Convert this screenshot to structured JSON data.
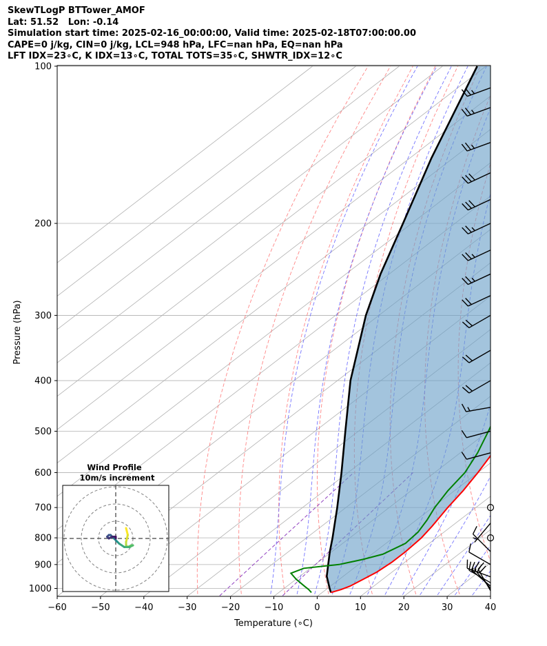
{
  "title_lines": [
    "SkewTLogP BTTower_AMOF",
    "Lat: 51.52   Lon: -0.14",
    "Simulation start time: 2025-02-16_00:00:00, Valid time: 2025-02-18T07:00:00.00",
    "CAPE=0 j/kg, CIN=0 j/kg, LCL=948 hPa, LFC=nan hPa, EQ=nan hPa",
    "LFT IDX=23∘C, K IDX=13∘C, TOTAL TOTS=35∘C, SHWTR_IDX=12∘C"
  ],
  "chart_data": {
    "type": "line",
    "subtype": "skew-t log-p diagram",
    "xlabel": "Temperature (∘C)",
    "ylabel": "Pressure (hPa)",
    "xlim": [
      -60,
      40
    ],
    "ylim": [
      1050,
      100
    ],
    "y_scale": "log",
    "x_ticks": [
      "−60",
      "−50",
      "−40",
      "−30",
      "−20",
      "−10",
      "0",
      "10",
      "20",
      "30",
      "40"
    ],
    "x_tick_values": [
      -60,
      -50,
      -40,
      -30,
      -20,
      -10,
      0,
      10,
      20,
      30,
      40
    ],
    "y_ticks": [
      "100",
      "200",
      "300",
      "400",
      "500",
      "600",
      "700",
      "800",
      "900",
      "1000"
    ],
    "y_tick_values": [
      100,
      200,
      300,
      400,
      500,
      600,
      700,
      800,
      900,
      1000
    ],
    "grid": true,
    "colors": {
      "temperature": "#ff0000",
      "dewpoint": "#008000",
      "parcel": "#000000",
      "cin_fill": "#6aa0c8",
      "dry_adiabats": "#ff6666",
      "moist_adiabats": "#5a5aff",
      "mixing_ratio": "#9040c0",
      "isotherms": "#b0b0b0"
    },
    "series": [
      {
        "key": "temperature",
        "pressure": [
          1018,
          1005,
          990,
          960,
          930,
          890,
          850,
          800,
          760,
          700,
          650,
          600,
          550,
          500,
          450,
          400,
          350,
          300,
          270,
          240,
          210,
          200,
          190,
          180,
          170,
          160,
          150,
          140,
          130,
          120,
          110,
          100
        ],
        "temperature": [
          2.0,
          3.5,
          4.5,
          5.5,
          6.5,
          7.0,
          7.0,
          6.5,
          5.5,
          3.5,
          2.0,
          0.0,
          -2.5,
          -5.5,
          -9.5,
          -14.5,
          -20.5,
          -28.5,
          -33.5,
          -39.0,
          -44.0,
          -48.0,
          -49.5,
          -47.5,
          -44.5,
          -41.0,
          -40.0,
          -40.0,
          -42.0,
          -46.5,
          -51.0,
          -55.5
        ]
      },
      {
        "key": "dewpoint",
        "pressure": [
          1018,
          1005,
          990,
          960,
          935,
          915,
          900,
          880,
          860,
          820,
          780,
          740,
          700,
          650,
          600,
          550,
          500,
          450,
          400,
          350,
          320,
          300,
          270,
          240,
          210,
          200,
          190,
          180,
          170,
          160,
          150,
          140,
          130,
          120,
          110,
          100
        ],
        "temperature": [
          -2.5,
          -4.0,
          -6.0,
          -10.0,
          -13.0,
          -11.5,
          -4.5,
          -0.5,
          2.5,
          4.5,
          4.0,
          2.5,
          0.5,
          -1.5,
          -3.0,
          -6.0,
          -10.0,
          -14.5,
          -20.0,
          -25.0,
          -29.0,
          -32.5,
          -36.0,
          -40.0,
          -45.0,
          -50.0,
          -50.5,
          -47.0,
          -43.5,
          -45.0,
          -40.0,
          -35.0,
          -32.0,
          -31.0,
          -33.0,
          -36.0
        ]
      },
      {
        "key": "parcel",
        "pressure": [
          1018,
          1000,
          948,
          900,
          850,
          800,
          700,
          600,
          500,
          400,
          300,
          250,
          200,
          150,
          100
        ],
        "temperature": [
          2.0,
          0.5,
          -3.8,
          -7.0,
          -10.5,
          -14.0,
          -22.0,
          -31.5,
          -43.0,
          -57.0,
          -73.0,
          -82.0,
          -92.0,
          -105.0,
          -122.0
        ]
      }
    ],
    "wind_barbs": [
      {
        "pressure": 1010,
        "speed_kt": 20,
        "direction_deg": 330
      },
      {
        "pressure": 1000,
        "speed_kt": 20,
        "direction_deg": 320
      },
      {
        "pressure": 990,
        "speed_kt": 15,
        "direction_deg": 310
      },
      {
        "pressure": 975,
        "speed_kt": 15,
        "direction_deg": 300
      },
      {
        "pressure": 950,
        "speed_kt": 10,
        "direction_deg": 290
      },
      {
        "pressure": 900,
        "speed_kt": 10,
        "direction_deg": 300
      },
      {
        "pressure": 850,
        "speed_kt": 10,
        "direction_deg": 315
      },
      {
        "pressure": 800,
        "speed_kt": 0,
        "direction_deg": 0
      },
      {
        "pressure": 750,
        "speed_kt": 5,
        "direction_deg": 220
      },
      {
        "pressure": 700,
        "speed_kt": 0,
        "direction_deg": 0
      },
      {
        "pressure": 550,
        "speed_kt": 10,
        "direction_deg": 255
      },
      {
        "pressure": 500,
        "speed_kt": 10,
        "direction_deg": 255
      },
      {
        "pressure": 450,
        "speed_kt": 15,
        "direction_deg": 260
      },
      {
        "pressure": 400,
        "speed_kt": 20,
        "direction_deg": 240
      },
      {
        "pressure": 350,
        "speed_kt": 20,
        "direction_deg": 240
      },
      {
        "pressure": 300,
        "speed_kt": 20,
        "direction_deg": 240
      },
      {
        "pressure": 275,
        "speed_kt": 20,
        "direction_deg": 245
      },
      {
        "pressure": 250,
        "speed_kt": 25,
        "direction_deg": 245
      },
      {
        "pressure": 225,
        "speed_kt": 25,
        "direction_deg": 245
      },
      {
        "pressure": 200,
        "speed_kt": 25,
        "direction_deg": 245
      },
      {
        "pressure": 180,
        "speed_kt": 30,
        "direction_deg": 245
      },
      {
        "pressure": 160,
        "speed_kt": 30,
        "direction_deg": 245
      },
      {
        "pressure": 140,
        "speed_kt": 25,
        "direction_deg": 250
      },
      {
        "pressure": 120,
        "speed_kt": 25,
        "direction_deg": 250
      },
      {
        "pressure": 110,
        "speed_kt": 25,
        "direction_deg": 250
      }
    ],
    "inset": {
      "title_lines": [
        "Wind Profile",
        "10m/s increment"
      ],
      "ring_step": 10,
      "rings": 3,
      "hodograph_uv": [
        [
          6,
          6
        ],
        [
          7,
          2
        ],
        [
          6,
          -2
        ],
        [
          6,
          -4
        ],
        [
          7,
          -5
        ],
        [
          9,
          -4
        ],
        [
          10,
          -4
        ],
        [
          8,
          -5
        ],
        [
          5,
          -5
        ],
        [
          2,
          -3
        ],
        [
          1,
          -2
        ],
        [
          0,
          -1
        ],
        [
          -1,
          0
        ],
        [
          -2,
          1
        ],
        [
          -3,
          2
        ],
        [
          -4,
          2
        ],
        [
          -5,
          1
        ],
        [
          -4,
          0
        ],
        [
          -2,
          1
        ],
        [
          0,
          1
        ],
        [
          0,
          0
        ]
      ]
    }
  }
}
